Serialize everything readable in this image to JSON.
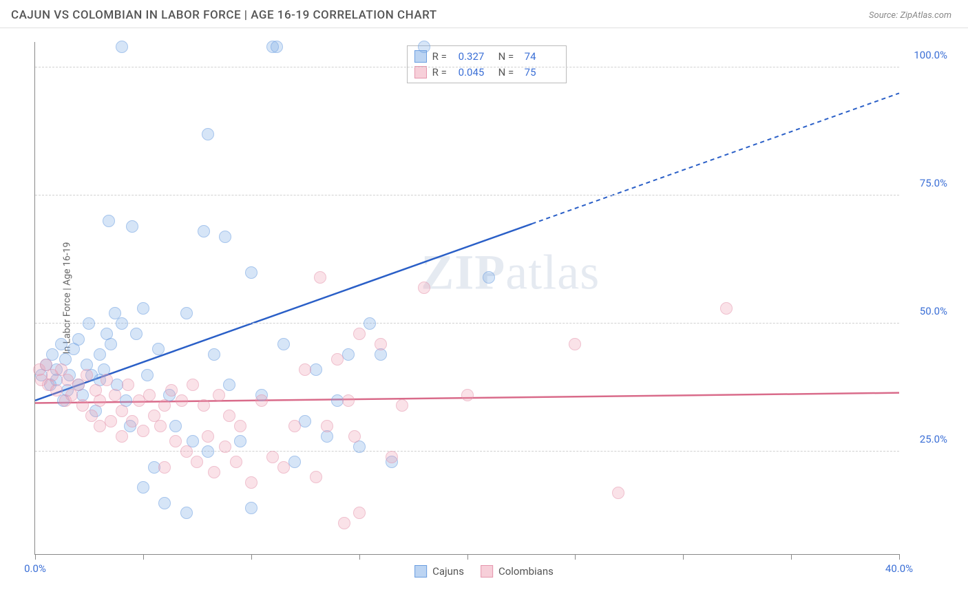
{
  "header": {
    "title": "CAJUN VS COLOMBIAN IN LABOR FORCE | AGE 16-19 CORRELATION CHART",
    "source_label": "Source: ",
    "source_name": "ZipAtlas.com"
  },
  "chart": {
    "type": "scatter",
    "ylabel": "In Labor Force | Age 16-19",
    "xlim": [
      0,
      40
    ],
    "ylim": [
      5,
      105
    ],
    "xticks": [
      0,
      5,
      10,
      15,
      20,
      25,
      30,
      35,
      40
    ],
    "xtick_labels": {
      "0": "0.0%",
      "40": "40.0%"
    },
    "yticks": [
      25,
      50,
      75,
      100
    ],
    "ytick_labels": [
      "25.0%",
      "50.0%",
      "75.0%",
      "100.0%"
    ],
    "grid_color": "#d0d0d0",
    "background_color": "#ffffff",
    "series": [
      {
        "name": "Cajuns",
        "color_fill": "rgba(122,170,230,0.5)",
        "color_border": "#6a9de0",
        "trend_color": "#2a5fc7",
        "trend_y0": 35,
        "trend_y40": 95,
        "solid_until_x": 23,
        "R": "0.327",
        "N": "74",
        "points": [
          [
            0.3,
            40
          ],
          [
            0.5,
            42
          ],
          [
            0.7,
            38
          ],
          [
            0.8,
            44
          ],
          [
            1.0,
            41
          ],
          [
            1.0,
            39
          ],
          [
            1.2,
            46
          ],
          [
            1.3,
            35
          ],
          [
            1.4,
            43
          ],
          [
            1.5,
            37
          ],
          [
            1.6,
            40
          ],
          [
            1.8,
            45
          ],
          [
            2.0,
            38
          ],
          [
            2.0,
            47
          ],
          [
            2.2,
            36
          ],
          [
            2.4,
            42
          ],
          [
            2.5,
            50
          ],
          [
            2.6,
            40
          ],
          [
            2.8,
            33
          ],
          [
            3.0,
            44
          ],
          [
            3.0,
            39
          ],
          [
            3.2,
            41
          ],
          [
            3.3,
            48
          ],
          [
            3.4,
            70
          ],
          [
            3.5,
            46
          ],
          [
            3.7,
            52
          ],
          [
            3.8,
            38
          ],
          [
            4.0,
            50
          ],
          [
            4.0,
            104
          ],
          [
            4.2,
            35
          ],
          [
            4.4,
            30
          ],
          [
            4.5,
            69
          ],
          [
            4.7,
            48
          ],
          [
            5.0,
            53
          ],
          [
            5.0,
            18
          ],
          [
            5.2,
            40
          ],
          [
            5.5,
            22
          ],
          [
            5.7,
            45
          ],
          [
            6.0,
            15
          ],
          [
            6.2,
            36
          ],
          [
            6.5,
            30
          ],
          [
            7.0,
            52
          ],
          [
            7.0,
            13
          ],
          [
            7.3,
            27
          ],
          [
            7.8,
            68
          ],
          [
            8.0,
            25
          ],
          [
            8.0,
            87
          ],
          [
            8.3,
            44
          ],
          [
            8.8,
            67
          ],
          [
            9.0,
            38
          ],
          [
            9.5,
            27
          ],
          [
            10.0,
            60
          ],
          [
            10.0,
            14
          ],
          [
            10.5,
            36
          ],
          [
            11.0,
            104
          ],
          [
            11.2,
            104
          ],
          [
            11.5,
            46
          ],
          [
            12.0,
            23
          ],
          [
            12.5,
            31
          ],
          [
            13.0,
            41
          ],
          [
            13.5,
            28
          ],
          [
            14.0,
            35
          ],
          [
            14.5,
            44
          ],
          [
            15.0,
            26
          ],
          [
            15.5,
            50
          ],
          [
            16.0,
            44
          ],
          [
            16.5,
            23
          ],
          [
            18.0,
            104
          ],
          [
            21.0,
            59
          ]
        ]
      },
      {
        "name": "Colombians",
        "color_fill": "rgba(240,160,180,0.5)",
        "color_border": "#e595ad",
        "trend_color": "#d96b8a",
        "trend_y0": 34.5,
        "trend_y40": 36.5,
        "solid_until_x": 40,
        "R": "0.045",
        "N": "75",
        "points": [
          [
            0.2,
            41
          ],
          [
            0.3,
            39
          ],
          [
            0.5,
            42
          ],
          [
            0.6,
            38
          ],
          [
            0.8,
            40
          ],
          [
            1.0,
            37
          ],
          [
            1.2,
            41
          ],
          [
            1.4,
            35
          ],
          [
            1.5,
            39
          ],
          [
            1.7,
            36
          ],
          [
            2.0,
            38
          ],
          [
            2.2,
            34
          ],
          [
            2.4,
            40
          ],
          [
            2.6,
            32
          ],
          [
            2.8,
            37
          ],
          [
            3.0,
            35
          ],
          [
            3.0,
            30
          ],
          [
            3.3,
            39
          ],
          [
            3.5,
            31
          ],
          [
            3.7,
            36
          ],
          [
            4.0,
            33
          ],
          [
            4.0,
            28
          ],
          [
            4.3,
            38
          ],
          [
            4.5,
            31
          ],
          [
            4.8,
            35
          ],
          [
            5.0,
            29
          ],
          [
            5.3,
            36
          ],
          [
            5.5,
            32
          ],
          [
            5.8,
            30
          ],
          [
            6.0,
            34
          ],
          [
            6.0,
            22
          ],
          [
            6.3,
            37
          ],
          [
            6.5,
            27
          ],
          [
            6.8,
            35
          ],
          [
            7.0,
            25
          ],
          [
            7.3,
            38
          ],
          [
            7.5,
            23
          ],
          [
            7.8,
            34
          ],
          [
            8.0,
            28
          ],
          [
            8.3,
            21
          ],
          [
            8.5,
            36
          ],
          [
            8.8,
            26
          ],
          [
            9.0,
            32
          ],
          [
            9.3,
            23
          ],
          [
            9.5,
            30
          ],
          [
            10.0,
            19
          ],
          [
            10.5,
            35
          ],
          [
            11.0,
            24
          ],
          [
            11.5,
            22
          ],
          [
            12.0,
            30
          ],
          [
            12.5,
            41
          ],
          [
            13.0,
            20
          ],
          [
            13.2,
            59
          ],
          [
            13.5,
            30
          ],
          [
            14.0,
            43
          ],
          [
            14.3,
            11
          ],
          [
            14.5,
            35
          ],
          [
            14.8,
            28
          ],
          [
            15.0,
            48
          ],
          [
            15.0,
            13
          ],
          [
            16.0,
            46
          ],
          [
            16.5,
            24
          ],
          [
            17.0,
            34
          ],
          [
            18.0,
            57
          ],
          [
            20.0,
            36
          ],
          [
            25.0,
            46
          ],
          [
            27.0,
            17
          ],
          [
            32.0,
            53
          ]
        ]
      }
    ],
    "legend_top": {
      "r_label": "R =",
      "n_label": "N ="
    },
    "legend_bottom": [
      "Cajuns",
      "Colombians"
    ],
    "watermark": {
      "zip": "ZIP",
      "atlas": "atlas"
    }
  }
}
